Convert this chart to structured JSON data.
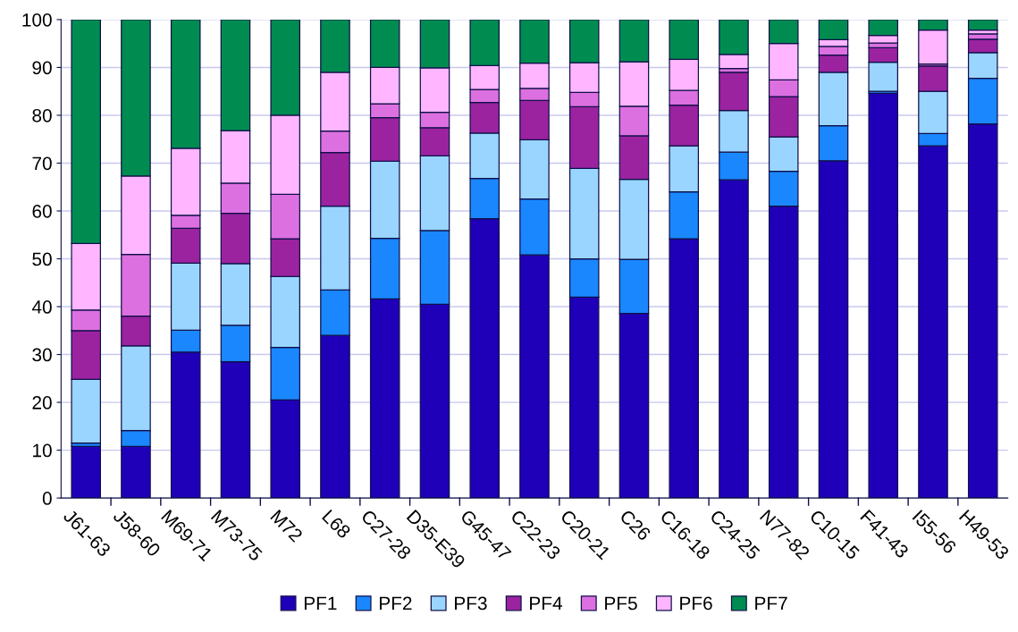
{
  "chart_data": {
    "type": "bar",
    "stacked": true,
    "categories": [
      "J61-63",
      "J58-60",
      "M69-71",
      "M73-75",
      "M72",
      "L68",
      "C27-28",
      "D35-E39",
      "G45-47",
      "C22-23",
      "C20-21",
      "C26",
      "C16-18",
      "C24-25",
      "N77-82",
      "C10-15",
      "F41-43",
      "I55-56",
      "H49-53"
    ],
    "series": [
      {
        "name": "PF1",
        "color": "#1f00b8",
        "values": [
          10.8,
          10.8,
          30.5,
          28.5,
          20.5,
          34.0,
          41.6,
          40.5,
          58.4,
          50.8,
          42.0,
          38.6,
          54.2,
          66.5,
          61.0,
          70.5,
          84.6,
          73.6,
          78.2
        ]
      },
      {
        "name": "PF2",
        "color": "#1a87ff",
        "values": [
          0.7,
          3.3,
          4.6,
          7.6,
          11.0,
          9.5,
          12.7,
          15.4,
          8.4,
          11.7,
          8.0,
          11.3,
          9.8,
          5.8,
          7.3,
          7.3,
          0.4,
          2.6,
          9.5
        ]
      },
      {
        "name": "PF3",
        "color": "#99d5ff",
        "values": [
          13.3,
          17.7,
          14.0,
          12.9,
          14.8,
          17.5,
          16.1,
          15.6,
          9.5,
          12.4,
          18.9,
          16.7,
          9.6,
          8.7,
          7.2,
          11.2,
          6.1,
          8.8,
          5.4
        ]
      },
      {
        "name": "PF4",
        "color": "#9b23a0",
        "values": [
          10.2,
          6.2,
          7.3,
          10.5,
          7.9,
          11.2,
          9.1,
          5.9,
          6.4,
          8.2,
          12.9,
          9.1,
          8.5,
          8.0,
          8.4,
          3.6,
          3.0,
          5.3,
          2.8
        ]
      },
      {
        "name": "PF5",
        "color": "#dd70e0",
        "values": [
          4.3,
          12.9,
          2.7,
          6.3,
          9.3,
          4.5,
          2.9,
          3.2,
          2.7,
          2.5,
          3.0,
          6.2,
          3.1,
          0.8,
          3.5,
          1.8,
          1.0,
          0.4,
          1.1
        ]
      },
      {
        "name": "PF6",
        "color": "#ffb5ff",
        "values": [
          13.9,
          16.4,
          14.0,
          11.0,
          16.5,
          12.3,
          7.6,
          9.3,
          5.0,
          5.3,
          6.2,
          9.3,
          6.5,
          2.9,
          7.6,
          1.4,
          1.6,
          7.1,
          0.8
        ]
      },
      {
        "name": "PF7",
        "color": "#008c50",
        "values": [
          46.8,
          32.7,
          26.9,
          23.2,
          20.0,
          11.0,
          10.0,
          10.1,
          9.6,
          9.1,
          9.0,
          8.8,
          8.3,
          7.3,
          5.0,
          4.2,
          3.3,
          2.2,
          2.2
        ]
      }
    ],
    "ylim": [
      0,
      100
    ],
    "yticks": [
      0,
      10,
      20,
      30,
      40,
      50,
      60,
      70,
      80,
      90,
      100
    ],
    "grid": "y",
    "legend": "bottom"
  }
}
